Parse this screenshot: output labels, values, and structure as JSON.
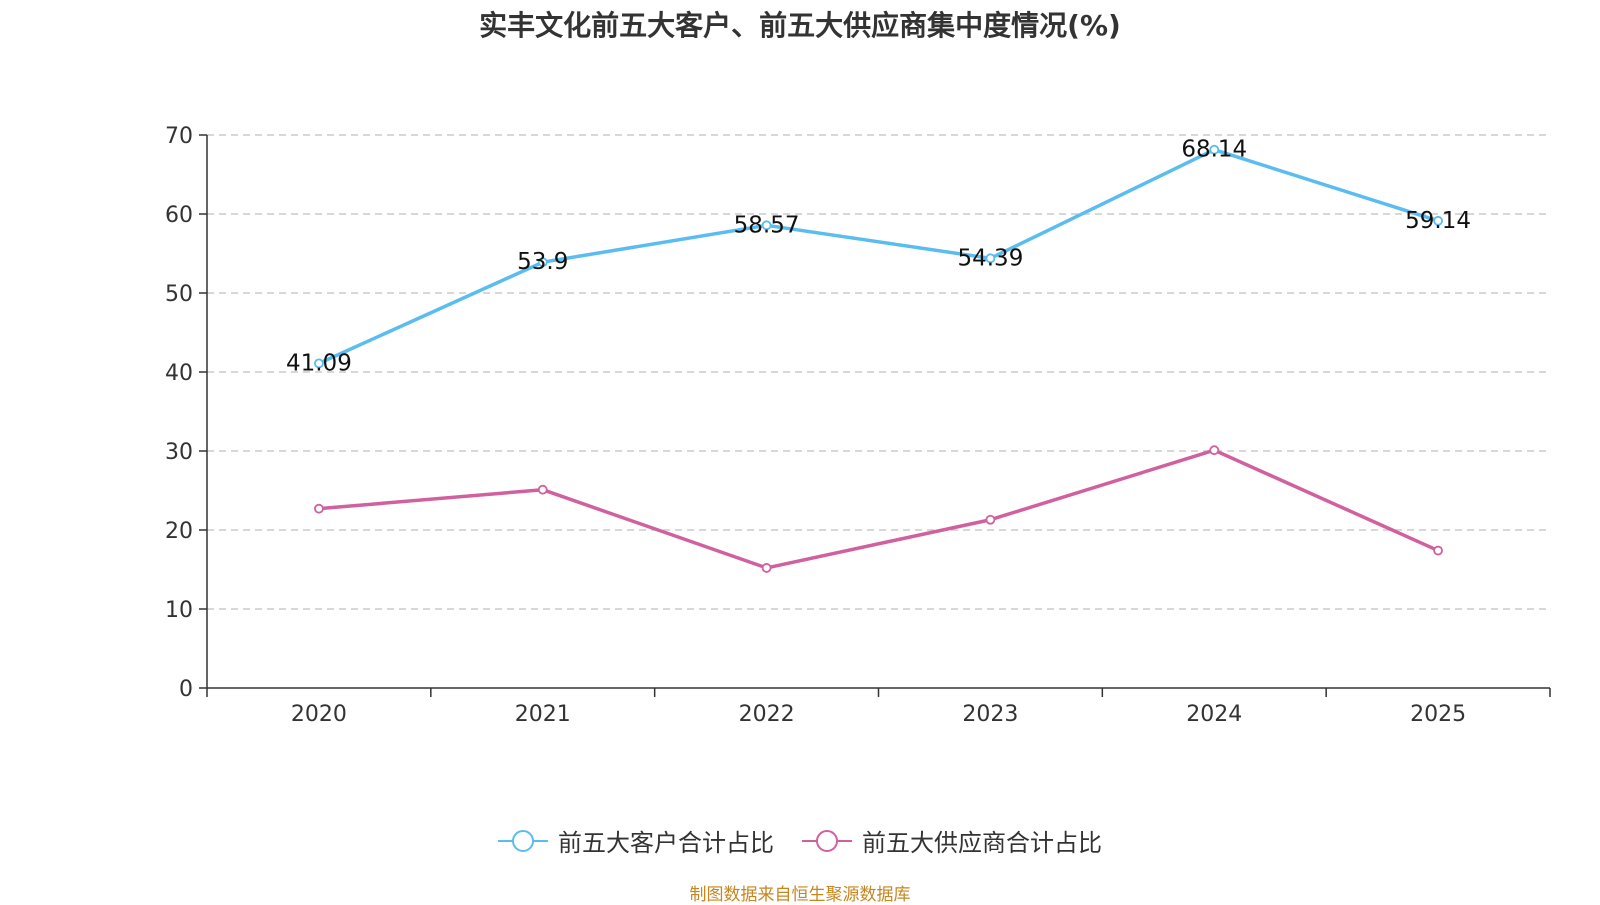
{
  "chart_data": {
    "type": "line",
    "title": "实丰文化前五大客户、前五大供应商集中度情况(%)",
    "categories": [
      "2020",
      "2021",
      "2022",
      "2023",
      "2024",
      "2025"
    ],
    "ylim": [
      0,
      70
    ],
    "yticks": [
      0,
      10,
      20,
      30,
      40,
      50,
      60,
      70
    ],
    "grid": true,
    "legend_position": "bottom-center",
    "series": [
      {
        "name": "前五大客户合计占比",
        "color": "#5bbcf0",
        "values": [
          41.09,
          53.9,
          58.57,
          54.39,
          68.14,
          59.14
        ],
        "data_labels": [
          "41.09",
          "53.9",
          "58.57",
          "54.39",
          "68.14",
          "59.14"
        ]
      },
      {
        "name": "前五大供应商合计占比",
        "color": "#d1609f",
        "values": [
          22.7,
          25.1,
          15.2,
          21.3,
          30.1,
          17.4
        ],
        "data_labels": null
      }
    ]
  },
  "source": "制图数据来自恒生聚源数据库"
}
